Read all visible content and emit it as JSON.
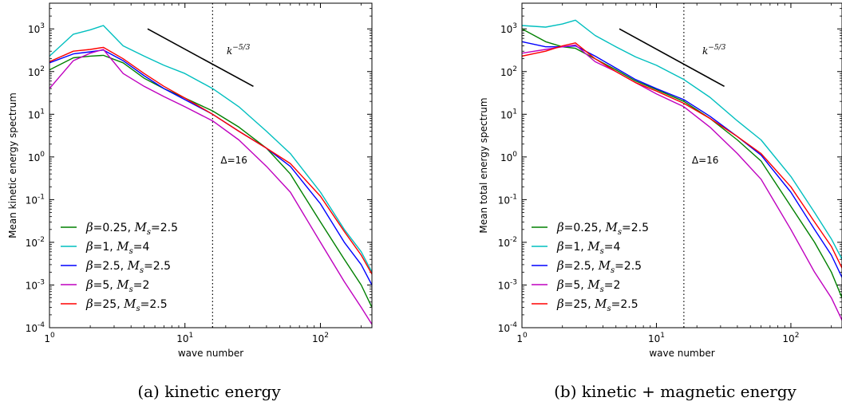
{
  "chart_data": [
    {
      "type": "line",
      "caption": "(a) kinetic energy",
      "ylabel": "Mean kinetic energy spectrum",
      "xlabel": "wave number",
      "xscale": "log",
      "yscale": "log",
      "xlim": [
        1,
        240
      ],
      "ylim": [
        0.0001,
        4000
      ],
      "xticks": [
        {
          "v": 1,
          "m": "1",
          "e": "0"
        },
        {
          "v": 10,
          "m": "10",
          "e": "1"
        },
        {
          "v": 100,
          "m": "10",
          "e": "2"
        }
      ],
      "yticks": [
        {
          "v": 0.0001,
          "m": "10",
          "e": "-4"
        },
        {
          "v": 0.001,
          "m": "10",
          "e": "-3"
        },
        {
          "v": 0.01,
          "m": "10",
          "e": "-2"
        },
        {
          "v": 0.1,
          "m": "10",
          "e": "-1"
        },
        {
          "v": 1,
          "m": "10",
          "e": "0"
        },
        {
          "v": 10,
          "m": "10",
          "e": "1"
        },
        {
          "v": 100,
          "m": "10",
          "e": "2"
        },
        {
          "v": 1000,
          "m": "10",
          "e": "3"
        }
      ],
      "vline": {
        "x": 16,
        "label": "Δ=16"
      },
      "slope_line": {
        "x": [
          5.3,
          32
        ],
        "y": [
          1000,
          45
        ],
        "label_base": "k",
        "label_exp": "−5/3"
      },
      "legend_position": "lower-left",
      "series": [
        {
          "beta": "0.25",
          "Ms": "2.5",
          "color": "#008000",
          "x": [
            1,
            1.5,
            2,
            2.5,
            3.5,
            5,
            7,
            10,
            16,
            25,
            40,
            60,
            100,
            150,
            200,
            240
          ],
          "y": [
            110,
            210,
            230,
            240,
            160,
            70,
            40,
            24,
            12,
            5,
            1.6,
            0.4,
            0.03,
            0.004,
            0.001,
            0.0003
          ]
        },
        {
          "beta": "1",
          "Ms": "4",
          "color": "#00bfbf",
          "x": [
            1,
            1.5,
            2,
            2.5,
            3.5,
            5,
            7,
            10,
            16,
            25,
            40,
            60,
            100,
            150,
            200,
            240
          ],
          "y": [
            230,
            750,
            950,
            1200,
            400,
            230,
            140,
            90,
            40,
            15,
            4,
            1.2,
            0.15,
            0.02,
            0.006,
            0.002
          ]
        },
        {
          "beta": "2.5",
          "Ms": "2.5",
          "color": "#0000ff",
          "x": [
            1,
            1.5,
            2,
            2.5,
            3.5,
            5,
            7,
            10,
            16,
            25,
            40,
            60,
            100,
            150,
            200,
            240
          ],
          "y": [
            160,
            260,
            290,
            320,
            180,
            80,
            40,
            22,
            10,
            4,
            1.6,
            0.6,
            0.08,
            0.01,
            0.003,
            0.001
          ]
        },
        {
          "beta": "5",
          "Ms": "2",
          "color": "#bf00bf",
          "x": [
            1,
            1.5,
            2,
            2.5,
            3.5,
            5,
            7,
            10,
            16,
            25,
            40,
            60,
            100,
            150,
            200,
            240
          ],
          "y": [
            40,
            180,
            270,
            330,
            90,
            45,
            26,
            15,
            7,
            2.5,
            0.6,
            0.15,
            0.01,
            0.0012,
            0.0003,
            0.00012
          ]
        },
        {
          "beta": "25",
          "Ms": "2.5",
          "color": "#ff0000",
          "x": [
            1,
            1.5,
            2,
            2.5,
            3.5,
            5,
            7,
            10,
            16,
            25,
            40,
            60,
            100,
            150,
            200,
            240
          ],
          "y": [
            170,
            300,
            330,
            370,
            200,
            90,
            45,
            24,
            10,
            4,
            1.6,
            0.7,
            0.12,
            0.018,
            0.005,
            0.0018
          ]
        }
      ]
    },
    {
      "type": "line",
      "caption": "(b) kinetic + magnetic energy",
      "ylabel": "Mean total energy spectrum",
      "xlabel": "wave number",
      "xscale": "log",
      "yscale": "log",
      "xlim": [
        1,
        240
      ],
      "ylim": [
        0.0001,
        4000
      ],
      "xticks": [
        {
          "v": 1,
          "m": "1",
          "e": "0"
        },
        {
          "v": 10,
          "m": "10",
          "e": "1"
        },
        {
          "v": 100,
          "m": "10",
          "e": "2"
        }
      ],
      "yticks": [
        {
          "v": 0.0001,
          "m": "10",
          "e": "-4"
        },
        {
          "v": 0.001,
          "m": "10",
          "e": "-3"
        },
        {
          "v": 0.01,
          "m": "10",
          "e": "-2"
        },
        {
          "v": 0.1,
          "m": "10",
          "e": "-1"
        },
        {
          "v": 1,
          "m": "10",
          "e": "0"
        },
        {
          "v": 10,
          "m": "10",
          "e": "1"
        },
        {
          "v": 100,
          "m": "10",
          "e": "2"
        },
        {
          "v": 1000,
          "m": "10",
          "e": "3"
        }
      ],
      "vline": {
        "x": 16,
        "label": "Δ=16"
      },
      "slope_line": {
        "x": [
          5.3,
          32
        ],
        "y": [
          1000,
          45
        ],
        "label_base": "k",
        "label_exp": "−5/3"
      },
      "legend_position": "lower-left",
      "series": [
        {
          "beta": "0.25",
          "Ms": "2.5",
          "color": "#008000",
          "x": [
            1,
            1.5,
            2,
            2.5,
            3.5,
            5,
            7,
            10,
            16,
            25,
            40,
            60,
            100,
            150,
            200,
            240
          ],
          "y": [
            1000,
            500,
            380,
            350,
            200,
            110,
            60,
            38,
            20,
            8,
            2.5,
            0.8,
            0.07,
            0.01,
            0.002,
            0.0005
          ]
        },
        {
          "beta": "1",
          "Ms": "4",
          "color": "#00bfbf",
          "x": [
            1,
            1.5,
            2,
            2.5,
            3.5,
            5,
            7,
            10,
            16,
            25,
            40,
            60,
            100,
            150,
            200,
            240
          ],
          "y": [
            1200,
            1100,
            1300,
            1600,
            700,
            380,
            220,
            140,
            65,
            25,
            7,
            2.5,
            0.35,
            0.05,
            0.012,
            0.004
          ]
        },
        {
          "beta": "2.5",
          "Ms": "2.5",
          "color": "#0000ff",
          "x": [
            1,
            1.5,
            2,
            2.5,
            3.5,
            5,
            7,
            10,
            16,
            25,
            40,
            60,
            100,
            150,
            200,
            240
          ],
          "y": [
            500,
            380,
            380,
            400,
            230,
            120,
            65,
            40,
            22,
            9,
            3,
            1.1,
            0.15,
            0.02,
            0.005,
            0.0015
          ]
        },
        {
          "beta": "5",
          "Ms": "2",
          "color": "#bf00bf",
          "x": [
            1,
            1.5,
            2,
            2.5,
            3.5,
            5,
            7,
            10,
            16,
            25,
            40,
            60,
            100,
            150,
            200,
            240
          ],
          "y": [
            270,
            330,
            380,
            420,
            170,
            100,
            55,
            30,
            15,
            5,
            1.2,
            0.3,
            0.02,
            0.002,
            0.0005,
            0.00015
          ]
        },
        {
          "beta": "25",
          "Ms": "2.5",
          "color": "#ff0000",
          "x": [
            1,
            1.5,
            2,
            2.5,
            3.5,
            5,
            7,
            10,
            16,
            25,
            40,
            60,
            100,
            150,
            200,
            240
          ],
          "y": [
            230,
            300,
            400,
            470,
            200,
            100,
            55,
            35,
            18,
            8,
            3,
            1.2,
            0.2,
            0.03,
            0.008,
            0.0025
          ]
        }
      ]
    }
  ]
}
